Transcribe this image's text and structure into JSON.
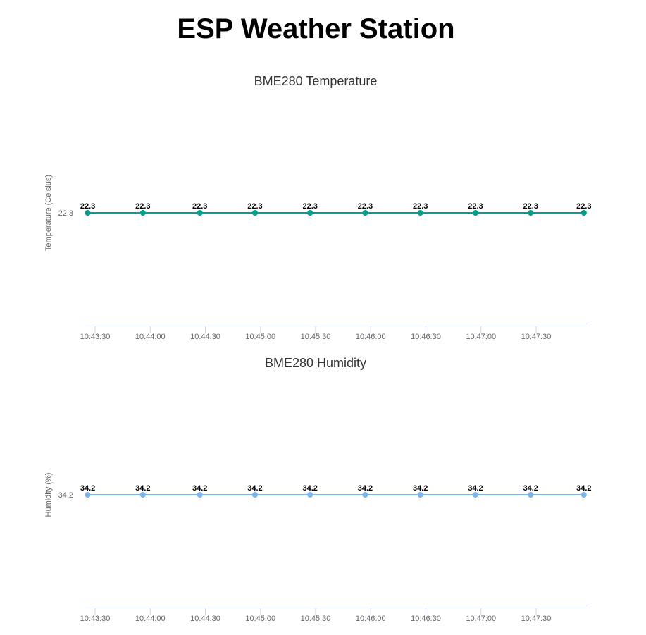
{
  "page": {
    "title": "ESP Weather Station"
  },
  "chart_data": [
    {
      "type": "line",
      "title": "BME280 Temperature",
      "xlabel": "",
      "ylabel": "Temperature (Celsius)",
      "x_tick_labels": [
        "10:43:30",
        "10:44:00",
        "10:44:30",
        "10:45:00",
        "10:45:30",
        "10:46:00",
        "10:46:30",
        "10:47:00",
        "10:47:30"
      ],
      "y_tick_labels": [
        "22.3"
      ],
      "series": [
        {
          "color": "#059e8a",
          "x": [
            "10:43:26",
            "10:43:56",
            "10:44:27",
            "10:44:57",
            "10:45:27",
            "10:45:57",
            "10:46:27",
            "10:46:57",
            "10:47:27",
            "10:47:56"
          ],
          "values": [
            22.3,
            22.3,
            22.3,
            22.3,
            22.3,
            22.3,
            22.3,
            22.3,
            22.3,
            22.3
          ],
          "data_labels": [
            "22.3",
            "22.3",
            "22.3",
            "22.3",
            "22.3",
            "22.3",
            "22.3",
            "22.3",
            "22.3",
            "22.3"
          ]
        }
      ],
      "grid": false,
      "legend": "none"
    },
    {
      "type": "line",
      "title": "BME280 Humidity",
      "xlabel": "",
      "ylabel": "Humidity (%)",
      "x_tick_labels": [
        "10:43:30",
        "10:44:00",
        "10:44:30",
        "10:45:00",
        "10:45:30",
        "10:46:00",
        "10:46:30",
        "10:47:00",
        "10:47:30"
      ],
      "y_tick_labels": [
        "34.2"
      ],
      "series": [
        {
          "color": "#7cb5ec",
          "x": [
            "10:43:26",
            "10:43:56",
            "10:44:27",
            "10:44:57",
            "10:45:27",
            "10:45:57",
            "10:46:27",
            "10:46:57",
            "10:47:27",
            "10:47:56"
          ],
          "values": [
            34.2,
            34.2,
            34.2,
            34.2,
            34.2,
            34.2,
            34.2,
            34.2,
            34.2,
            34.2
          ],
          "data_labels": [
            "34.2",
            "34.2",
            "34.2",
            "34.2",
            "34.2",
            "34.2",
            "34.2",
            "34.2",
            "34.2",
            "34.2"
          ]
        }
      ],
      "grid": false,
      "legend": "none"
    }
  ]
}
